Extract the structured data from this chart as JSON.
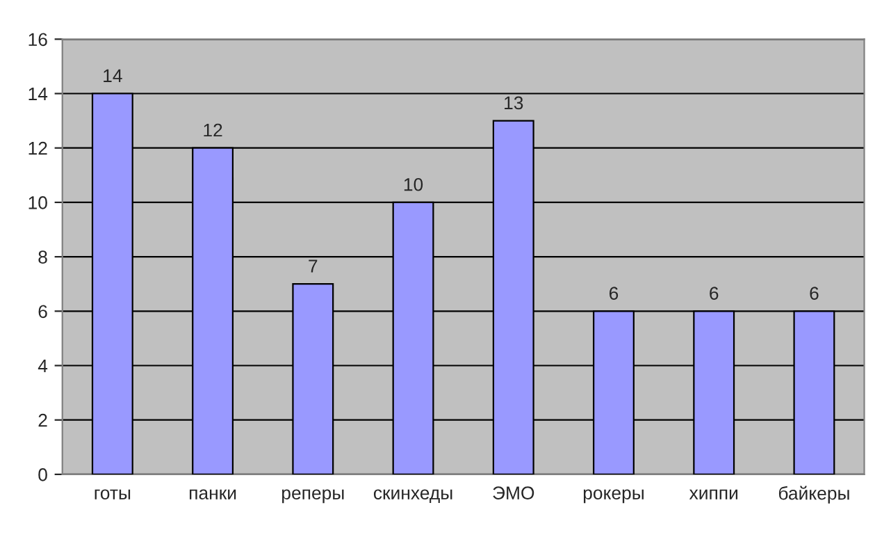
{
  "chart_data": {
    "type": "bar",
    "categories": [
      "готы",
      "панки",
      "реперы",
      "скинхеды",
      "ЭМО",
      "рокеры",
      "хиппи",
      "байкеры"
    ],
    "values": [
      14,
      12,
      7,
      10,
      13,
      6,
      6,
      6
    ],
    "color": "#9999ff",
    "ylim": [
      0,
      16
    ],
    "yticks": [
      0,
      2,
      4,
      6,
      8,
      10,
      12,
      14,
      16
    ],
    "grid": "y",
    "data_labels": true
  }
}
